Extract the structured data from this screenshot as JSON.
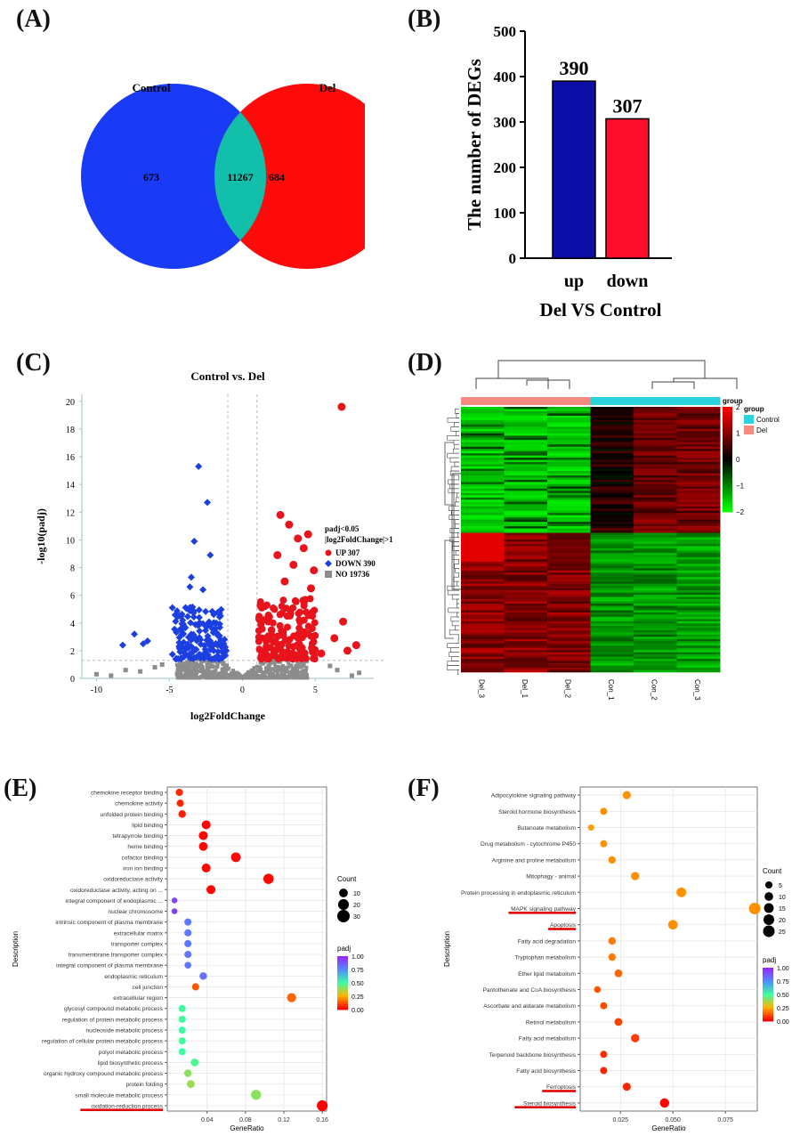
{
  "chart_data": [
    {
      "panel": "(A)",
      "type": "venn",
      "sets": [
        {
          "name": "Control",
          "only": "673",
          "color": "#1a3bf5"
        },
        {
          "name": "Del",
          "only": "684",
          "color": "#ff0a0a"
        }
      ],
      "overlap": "11267",
      "overlap_color": "#12bfaa"
    },
    {
      "panel": "(B)",
      "type": "bar",
      "categories": [
        "up",
        "down"
      ],
      "values": [
        390,
        307
      ],
      "value_labels": [
        "390",
        "307"
      ],
      "colors": [
        "#0d0da8",
        "#ff0d2d"
      ],
      "ylabel": "The number of DEGs",
      "xlabel": "Del VS Control",
      "ylim": [
        0,
        500
      ],
      "yticks": [
        0,
        100,
        200,
        300,
        400,
        500
      ]
    },
    {
      "panel": "(C)",
      "type": "scatter",
      "title": "Control vs. Del",
      "xlabel": "log2FoldChange",
      "ylabel": "-log10(padj)",
      "xlim": [
        -11,
        9
      ],
      "ylim": [
        0,
        20.5
      ],
      "xticks": [
        -10,
        -5,
        0,
        5
      ],
      "yticks": [
        0,
        2,
        4,
        6,
        8,
        10,
        12,
        14,
        16,
        18,
        20
      ],
      "thresholds": {
        "x": [
          -1,
          1
        ],
        "y": 1.3
      },
      "legend_title": [
        "padj<0.05",
        "|log2FoldChange|>1"
      ],
      "legend": [
        {
          "label": "UP 307",
          "color": "#e8131b",
          "shape": "circle"
        },
        {
          "label": "DOWN 390",
          "color": "#1b3fe0",
          "shape": "diamond"
        },
        {
          "label": "NO 19736",
          "color": "#8c8c8c",
          "shape": "square"
        }
      ]
    },
    {
      "panel": "(D)",
      "type": "heatmap",
      "columns": [
        "Del_3",
        "Del_1",
        "Del_2",
        "Con_1",
        "Con_2",
        "Con_3"
      ],
      "group_title": "group",
      "groups": [
        {
          "name": "Control",
          "color": "#2bd3da"
        },
        {
          "name": "Del",
          "color": "#f48a80"
        }
      ],
      "colorbar_ticks": [
        "2",
        "1",
        "0",
        "−1",
        "−2"
      ],
      "colorbar_range": [
        -2,
        2
      ]
    },
    {
      "panel": "(E)",
      "type": "scatter",
      "xlabel": "GeneRatio",
      "ylabel": "Description",
      "xlim": [
        -0.0015,
        0.1645
      ],
      "xticks": [
        0.04,
        0.08,
        0.12,
        0.16
      ],
      "xtick_labels": [
        "0.04",
        "0.08",
        "0.12",
        "0.16"
      ],
      "size_legend": {
        "title": "Count",
        "values": [
          10,
          20,
          30
        ]
      },
      "color_legend": {
        "title": "padj",
        "ticks": [
          "1.00",
          "0.75",
          "0.50",
          "0.25",
          "0.00"
        ]
      },
      "highlighted": [
        "oxidation-reduction process"
      ],
      "terms": [
        {
          "label": "chemokine receptor binding",
          "x": 0.011,
          "count": 5,
          "padj": 0.05
        },
        {
          "label": "chemokine activity",
          "x": 0.012,
          "count": 5,
          "padj": 0.05
        },
        {
          "label": "unfolded protein binding",
          "x": 0.014,
          "count": 6,
          "padj": 0.04
        },
        {
          "label": "lipid binding",
          "x": 0.039,
          "count": 11,
          "padj": 0.01
        },
        {
          "label": "tetrapyrrole binding",
          "x": 0.036,
          "count": 11,
          "padj": 0.01
        },
        {
          "label": "heme binding",
          "x": 0.036,
          "count": 10,
          "padj": 0.01
        },
        {
          "label": "cofactor binding",
          "x": 0.07,
          "count": 14,
          "padj": 0.01
        },
        {
          "label": "iron ion binding",
          "x": 0.039,
          "count": 11,
          "padj": 0.01
        },
        {
          "label": "oxidoreductase activity",
          "x": 0.104,
          "count": 17,
          "padj": 0.01
        },
        {
          "label": "oxidoreductase activity, acting on ...",
          "x": 0.044,
          "count": 11,
          "padj": 0.01
        },
        {
          "label": "integral component of endoplasmic ...",
          "x": 0.006,
          "count": 2,
          "padj": 0.92
        },
        {
          "label": "nuclear chromosome",
          "x": 0.006,
          "count": 2,
          "padj": 0.94
        },
        {
          "label": "intrinsic component of plasma membrane",
          "x": 0.02,
          "count": 5,
          "padj": 0.8
        },
        {
          "label": "extracellular matrix",
          "x": 0.02,
          "count": 5,
          "padj": 0.8
        },
        {
          "label": "transporter complex",
          "x": 0.02,
          "count": 5,
          "padj": 0.8
        },
        {
          "label": "transmembrane transporter complex",
          "x": 0.02,
          "count": 5,
          "padj": 0.8
        },
        {
          "label": "integral component of plasma membrane",
          "x": 0.02,
          "count": 4,
          "padj": 0.8
        },
        {
          "label": "endoplasmic reticulum",
          "x": 0.036,
          "count": 6,
          "padj": 0.82
        },
        {
          "label": "cell junction",
          "x": 0.028,
          "count": 5,
          "padj": 0.12
        },
        {
          "label": "extracellular region",
          "x": 0.128,
          "count": 12,
          "padj": 0.14
        },
        {
          "label": "glycosyl compound metabolic process",
          "x": 0.014,
          "count": 5,
          "padj": 0.5
        },
        {
          "label": "regulation of protein metabolic process",
          "x": 0.014,
          "count": 5,
          "padj": 0.5
        },
        {
          "label": "nucleoside metabolic process",
          "x": 0.014,
          "count": 5,
          "padj": 0.5
        },
        {
          "label": "regulation of cellular protein metabolic process",
          "x": 0.014,
          "count": 5,
          "padj": 0.5
        },
        {
          "label": "polyol metabolic process",
          "x": 0.014,
          "count": 5,
          "padj": 0.5
        },
        {
          "label": "lipid biosynthetic process",
          "x": 0.027,
          "count": 7,
          "padj": 0.48
        },
        {
          "label": "organic hydroxy compound metabolic process",
          "x": 0.02,
          "count": 6,
          "padj": 0.4
        },
        {
          "label": "protein folding",
          "x": 0.023,
          "count": 7,
          "padj": 0.38
        },
        {
          "label": "small molecule metabolic process",
          "x": 0.091,
          "count": 16,
          "padj": 0.4
        },
        {
          "label": "oxidation-reduction process",
          "x": 0.16,
          "count": 20,
          "padj": 0.0
        }
      ]
    },
    {
      "panel": "(F)",
      "type": "scatter",
      "xlabel": "GeneRatio",
      "ylabel": "Description",
      "xlim": [
        0.0058,
        0.0902
      ],
      "xticks": [
        0.025,
        0.05,
        0.075
      ],
      "xtick_labels": [
        "0.025",
        "0.050",
        "0.075"
      ],
      "size_legend": {
        "title": "Count",
        "values": [
          5,
          10,
          15,
          20,
          25
        ]
      },
      "color_legend": {
        "title": "padj",
        "ticks": [
          "1.00",
          "0.75",
          "0.50",
          "0.25",
          "0.00"
        ]
      },
      "highlighted": [
        "MAPK signaling pathway",
        "Apoptosis",
        "Ferroptosis",
        "Steroid biosynthesis"
      ],
      "terms": [
        {
          "label": "Adipocytokine signaling pathway",
          "x": 0.028,
          "count": 8,
          "padj": 0.2
        },
        {
          "label": "Steroid hormone biosynthesis",
          "x": 0.017,
          "count": 5,
          "padj": 0.2
        },
        {
          "label": "Butanoate metabolism",
          "x": 0.011,
          "count": 3,
          "padj": 0.22
        },
        {
          "label": "Drug metabolism - cytochrome P450",
          "x": 0.017,
          "count": 5,
          "padj": 0.2
        },
        {
          "label": "Arginine and proline metabolism",
          "x": 0.021,
          "count": 6,
          "padj": 0.2
        },
        {
          "label": "Mitophagy - animal",
          "x": 0.032,
          "count": 9,
          "padj": 0.2
        },
        {
          "label": "Protein processing in endoplasmic reticulum",
          "x": 0.054,
          "count": 15,
          "padj": 0.2
        },
        {
          "label": "MAPK signaling pathway",
          "x": 0.089,
          "count": 25,
          "padj": 0.2
        },
        {
          "label": "Apoptosis",
          "x": 0.05,
          "count": 14,
          "padj": 0.2
        },
        {
          "label": "Fatty acid degradation",
          "x": 0.021,
          "count": 6,
          "padj": 0.17
        },
        {
          "label": "Tryptophan metabolism",
          "x": 0.021,
          "count": 6,
          "padj": 0.17
        },
        {
          "label": "Ether lipid metabolism",
          "x": 0.024,
          "count": 7,
          "padj": 0.14
        },
        {
          "label": "Pantothenate and CoA biosynthesis",
          "x": 0.014,
          "count": 4,
          "padj": 0.12
        },
        {
          "label": "Ascorbate and aldarate metabolism",
          "x": 0.017,
          "count": 5,
          "padj": 0.1
        },
        {
          "label": "Retinol metabolism",
          "x": 0.024,
          "count": 7,
          "padj": 0.09
        },
        {
          "label": "Fatty acid metabolism",
          "x": 0.032,
          "count": 9,
          "padj": 0.08
        },
        {
          "label": "Terpenoid backbone biosynthesis",
          "x": 0.017,
          "count": 5,
          "padj": 0.06
        },
        {
          "label": "Fatty acid biosynthesis",
          "x": 0.017,
          "count": 5,
          "padj": 0.05
        },
        {
          "label": "Ferroptosis",
          "x": 0.028,
          "count": 8,
          "padj": 0.05
        },
        {
          "label": "Steroid biosynthesis",
          "x": 0.046,
          "count": 13,
          "padj": 0.01
        }
      ]
    }
  ]
}
